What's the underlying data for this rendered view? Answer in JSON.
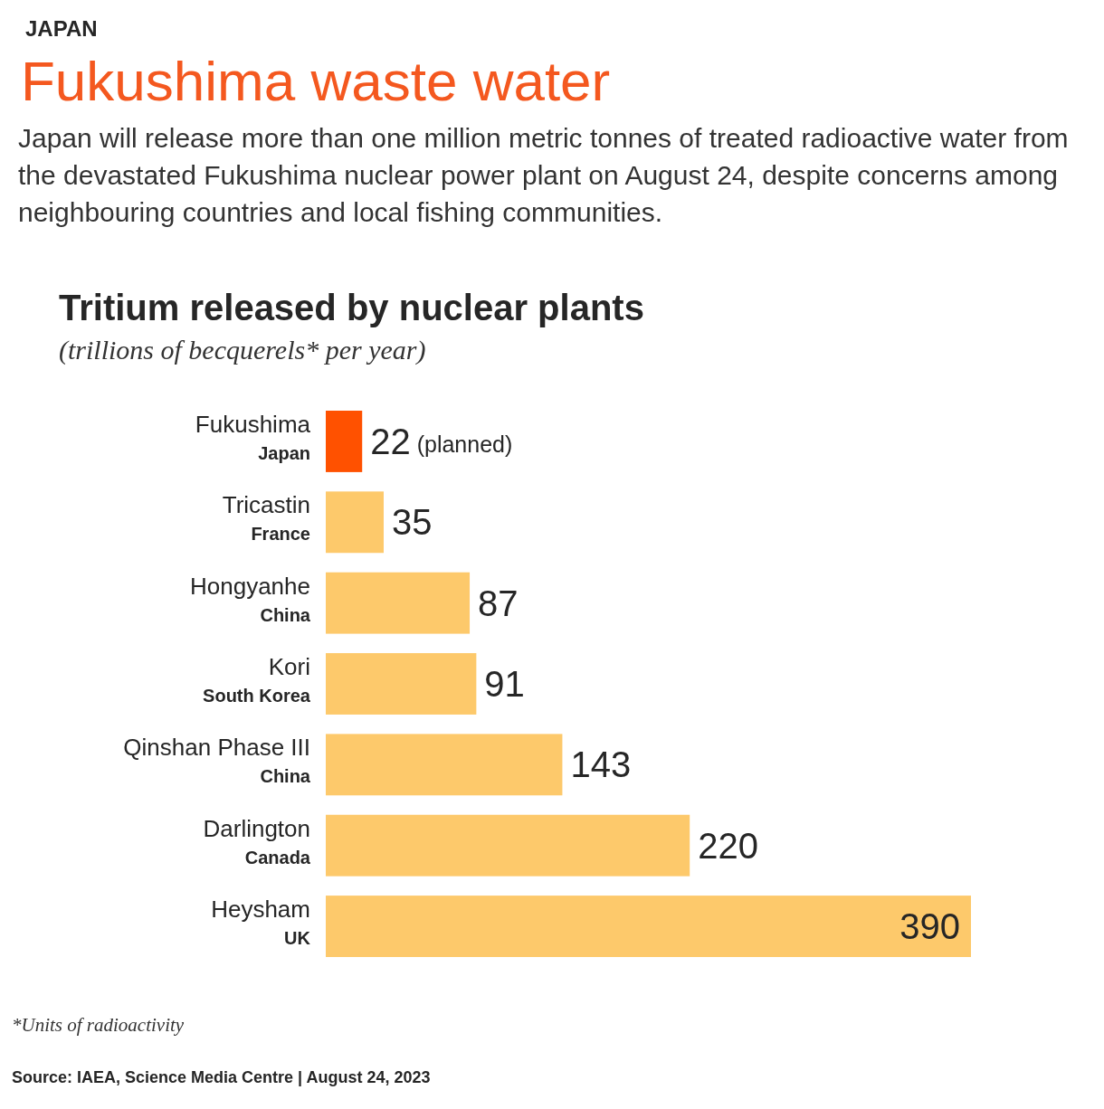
{
  "chart_data": {
    "type": "bar",
    "orientation": "horizontal",
    "title": "Fukushima waste water",
    "subtitle": "Japan will release more than one million metric tonnes of treated radioactive water from the devastated Fukushima nuclear power plant on August 24, despite concerns among neighbouring countries and local fishing communities.",
    "annotations": [
      "JAPAN",
      "Tritium released by nuclear plants",
      "(trillions of becquerels* per year)",
      "*Units of radioactivity",
      "Source: IAEA, Science Media Centre | August 24, 2023"
    ],
    "categories": [
      "Fukushima\nJapan",
      "Tricastin\nFrance",
      "Hongyanhe\nChina",
      "Kori\nSouth Korea",
      "Qinshan Phase III\nChina",
      "Darlington\nCanada",
      "Heysham\nUK"
    ],
    "values": [
      22,
      35,
      87,
      91,
      143,
      220,
      390
    ],
    "colors": [
      "#ff5100",
      "#fdc96b",
      "#fdc96b",
      "#fdc96b",
      "#fdc96b",
      "#fdc96b",
      "#fdc96b"
    ],
    "value_labels": [
      "22 (planned)",
      "35",
      "87",
      "91",
      "143",
      "220",
      "390"
    ]
  }
}
